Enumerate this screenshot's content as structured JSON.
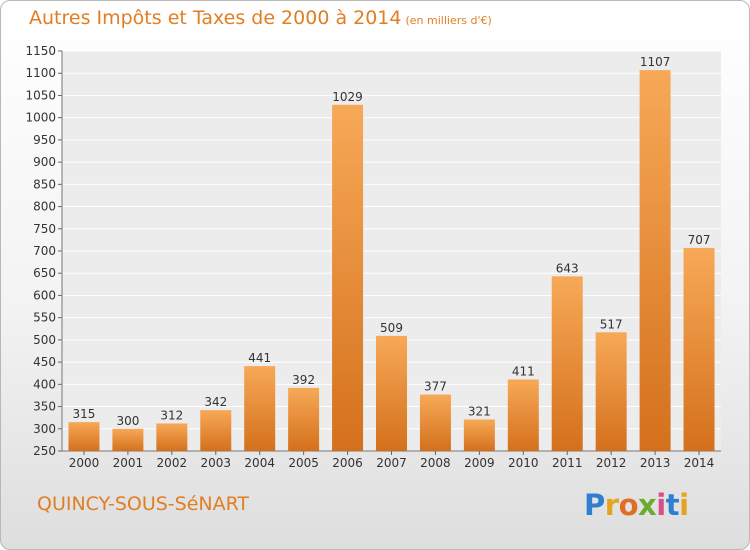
{
  "title": "Autres Impôts et Taxes de 2000 à 2014",
  "subtitle": "(en milliers d'€)",
  "city": "QUINCY-SOUS-SéNART",
  "logo": {
    "letters": [
      "P",
      "r",
      "o",
      "x",
      "i",
      "t",
      "i"
    ],
    "colors": [
      "#2f7fd0",
      "#e5a41e",
      "#e06e25",
      "#6aac2e",
      "#d94e8a",
      "#2f7fd0",
      "#e5a41e"
    ]
  },
  "colors": {
    "accent": "#e27e22",
    "bar_top": "#f7a957",
    "bar_bottom": "#d4701c"
  },
  "chart_data": {
    "type": "bar",
    "categories": [
      "2000",
      "2001",
      "2002",
      "2003",
      "2004",
      "2005",
      "2006",
      "2007",
      "2008",
      "2009",
      "2010",
      "2011",
      "2012",
      "2013",
      "2014"
    ],
    "values": [
      315,
      300,
      312,
      342,
      441,
      392,
      1029,
      509,
      377,
      321,
      411,
      643,
      517,
      1107,
      707
    ],
    "title": "Autres Impôts et Taxes de 2000 à 2014",
    "xlabel": "",
    "ylabel": "",
    "ylim": [
      250,
      1150
    ],
    "ytick_step": 50,
    "grid": true
  }
}
